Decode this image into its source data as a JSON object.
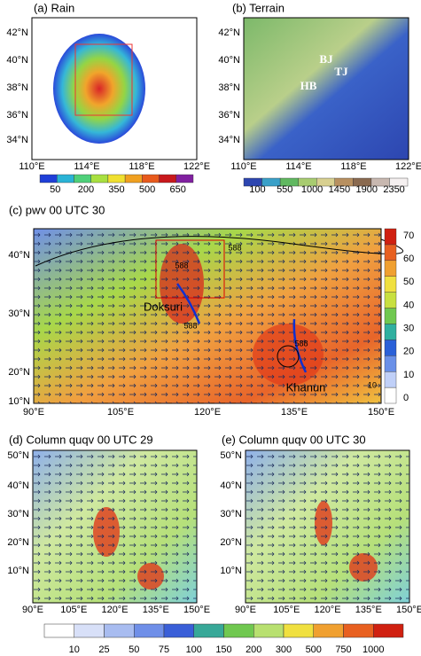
{
  "panels": [
    {
      "title": "(a) Rain",
      "lat_labels": [
        "42°N",
        "40°N",
        "38°N",
        "36°N",
        "34°N"
      ],
      "lon_labels": [
        "110°E",
        "114°E",
        "118°E",
        "122°E"
      ],
      "colorbar": [
        50,
        200,
        350,
        500,
        650
      ],
      "annotations": []
    },
    {
      "title": "(b) Terrain",
      "lat_labels": [
        "42°N",
        "40°N",
        "38°N",
        "36°N",
        "34°N"
      ],
      "lon_labels": [
        "110°E",
        "114°E",
        "118°E",
        "122°E"
      ],
      "colorbar": [
        100,
        550,
        1000,
        1450,
        1900,
        2350
      ],
      "annotations": [
        "BJ",
        "TJ",
        "HB"
      ]
    },
    {
      "title": "(c) pwv  00 UTC 30",
      "lat_labels": [
        "40°N",
        "30°N",
        "20°N",
        "10°N"
      ],
      "lon_labels": [
        "90°E",
        "105°E",
        "120°E",
        "135°E",
        "150°E"
      ],
      "colorbar": [
        70,
        60,
        50,
        40,
        30,
        20,
        10,
        0
      ],
      "annotations": [
        "Doksuri",
        "Khanun",
        "588",
        "588",
        "588",
        "588",
        "10"
      ]
    },
    {
      "title": "(d) Column quqv 00 UTC 29",
      "lat_labels": [
        "50°N",
        "40°N",
        "30°N",
        "20°N",
        "10°N"
      ],
      "lon_labels": [
        "90°E",
        "105°E",
        "120°E",
        "135°E",
        "150°E"
      ],
      "colorbar": [],
      "annotations": []
    },
    {
      "title": "(e) Column quqv 00 UTC 30",
      "lat_labels": [
        "50°N",
        "40°N",
        "30°N",
        "20°N",
        "10°N"
      ],
      "lon_labels": [
        "90°E",
        "105°E",
        "120°E",
        "135°E",
        "150°E"
      ],
      "colorbar": [],
      "annotations": []
    }
  ],
  "shared_colorbar": [
    10,
    25,
    50,
    75,
    100,
    150,
    200,
    300,
    500,
    750,
    1000
  ]
}
